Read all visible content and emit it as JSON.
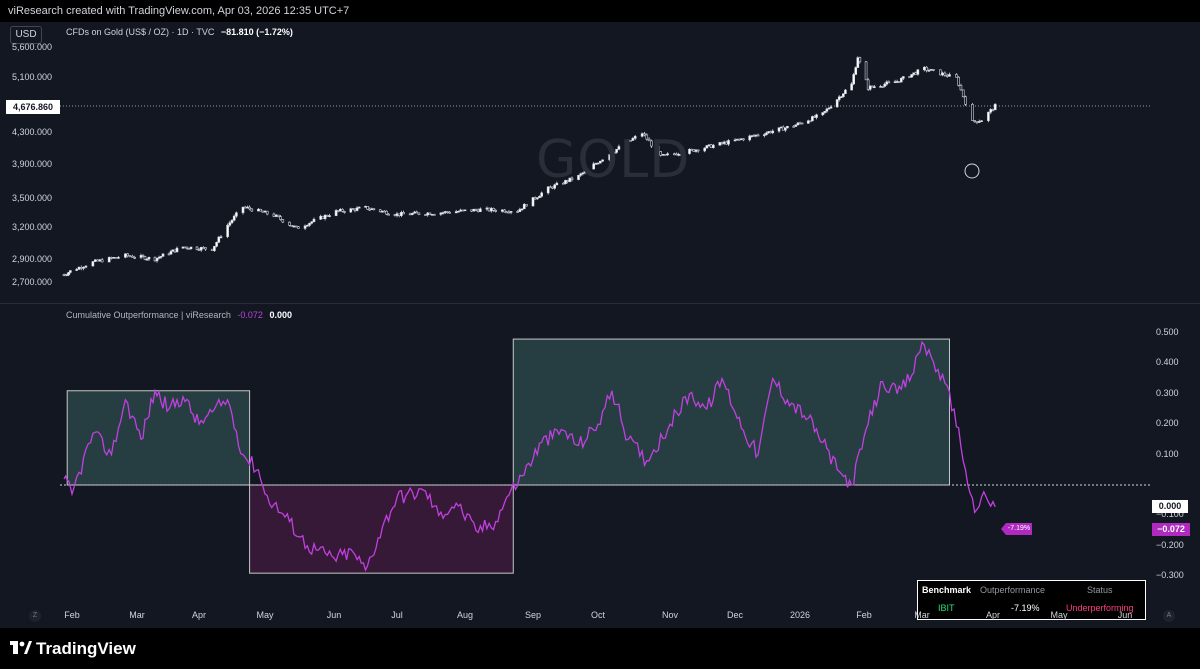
{
  "header": {
    "credit": "viResearch created with TradingView.com, Apr 03, 2026 12:35 UTC+7"
  },
  "top_pane": {
    "currency": "USD",
    "symbol_desc": "CFDs on Gold (US$ / OZ) · 1D · TVC",
    "change": "−81.810 (−1.72%)",
    "watermark": "GOLD",
    "current_price": "4,676.860",
    "y_ticks": [
      "5,600.000",
      "5,100.000",
      "4,300.000",
      "3,900.000",
      "3,500.000",
      "3,200.000",
      "2,900.000",
      "2,700.000"
    ]
  },
  "bottom_pane": {
    "title": "Cumulative Outperformance | viResearch",
    "value1": "-0.072",
    "value2": "0.000",
    "zero_label": "0.000",
    "last_value": "−0.072",
    "last_pct": "-7.19%",
    "y_ticks": [
      "0.500",
      "0.400",
      "0.300",
      "0.200",
      "0.100",
      "−0.100",
      "−0.200",
      "−0.300"
    ]
  },
  "table": {
    "headers": [
      "Benchmark",
      "Outperformance",
      "Status"
    ],
    "row": [
      "IBIT",
      "-7.19%",
      "Underperforming"
    ],
    "colors": {
      "benchmark": "#26e07a",
      "status": "#ff3d7f"
    }
  },
  "time_axis": {
    "labels": [
      "Feb",
      "Mar",
      "Apr",
      "May",
      "Jun",
      "Jul",
      "Aug",
      "Sep",
      "Oct",
      "Nov",
      "Dec",
      "2026",
      "Feb",
      "Mar",
      "Apr",
      "May",
      "Jun"
    ],
    "left_btn": "Z",
    "right_btn": "A"
  },
  "footer": {
    "brand": "TradingView"
  },
  "colors": {
    "background": "#131722",
    "up_candle": "#ffffff",
    "line": "#c040e0",
    "positive_zone": "#2a4548",
    "negative_zone": "#3d1a3a"
  },
  "chart_data": [
    {
      "type": "candlestick",
      "title": "CFDs on Gold (US$ / OZ) · 1D · TVC",
      "x_range": [
        "2025-01-27",
        "2026-04-02"
      ],
      "ylim": [
        2650,
        5700
      ],
      "anchors": [
        [
          "2025-01-27",
          2770
        ],
        [
          "2025-02-10",
          2880
        ],
        [
          "2025-02-24",
          2940
        ],
        [
          "2025-03-10",
          2910
        ],
        [
          "2025-03-24",
          3020
        ],
        [
          "2025-04-07",
          3000
        ],
        [
          "2025-04-14",
          3230
        ],
        [
          "2025-04-21",
          3420
        ],
        [
          "2025-05-05",
          3330
        ],
        [
          "2025-05-15",
          3200
        ],
        [
          "2025-06-02",
          3370
        ],
        [
          "2025-06-16",
          3410
        ],
        [
          "2025-07-01",
          3340
        ],
        [
          "2025-07-21",
          3360
        ],
        [
          "2025-08-08",
          3390
        ],
        [
          "2025-08-25",
          3380
        ],
        [
          "2025-09-08",
          3620
        ],
        [
          "2025-09-22",
          3760
        ],
        [
          "2025-10-07",
          4050
        ],
        [
          "2025-10-20",
          4300
        ],
        [
          "2025-10-28",
          4000
        ],
        [
          "2025-11-12",
          4080
        ],
        [
          "2025-12-01",
          4200
        ],
        [
          "2025-12-15",
          4300
        ],
        [
          "2025-12-29",
          4400
        ],
        [
          "2026-01-12",
          4560
        ],
        [
          "2026-01-26",
          5000
        ],
        [
          "2026-01-29",
          5450
        ],
        [
          "2026-02-03",
          4950
        ],
        [
          "2026-02-17",
          5050
        ],
        [
          "2026-03-02",
          5250
        ],
        [
          "2026-03-16",
          5100
        ],
        [
          "2026-03-23",
          4450
        ],
        [
          "2026-03-27",
          4480
        ],
        [
          "2026-04-02",
          4677
        ]
      ]
    },
    {
      "type": "line",
      "title": "Cumulative Outperformance | viResearch",
      "x_range": [
        "2025-01-27",
        "2026-04-02"
      ],
      "ylim": [
        -0.35,
        0.5
      ],
      "zones": [
        {
          "from": "2025-01-29",
          "to": "2025-04-24",
          "top": 0.31,
          "bottom": 0.0,
          "kind": "outperform"
        },
        {
          "from": "2025-04-24",
          "to": "2025-08-23",
          "top": 0.0,
          "bottom": -0.29,
          "kind": "underperform"
        },
        {
          "from": "2025-08-23",
          "to": "2026-03-13",
          "top": 0.48,
          "bottom": 0.0,
          "kind": "outperform"
        }
      ],
      "series": [
        {
          "values": [
            [
              "2025-01-27",
              0.02
            ],
            [
              "2025-02-01",
              -0.03
            ],
            [
              "2025-02-10",
              0.17
            ],
            [
              "2025-02-18",
              0.1
            ],
            [
              "2025-02-24",
              0.28
            ],
            [
              "2025-03-03",
              0.15
            ],
            [
              "2025-03-10",
              0.31
            ],
            [
              "2025-03-17",
              0.25
            ],
            [
              "2025-03-24",
              0.29
            ],
            [
              "2025-04-01",
              0.2
            ],
            [
              "2025-04-07",
              0.24
            ],
            [
              "2025-04-14",
              0.28
            ],
            [
              "2025-04-21",
              0.1
            ],
            [
              "2025-04-28",
              0.05
            ],
            [
              "2025-05-01",
              -0.03
            ],
            [
              "2025-05-12",
              -0.12
            ],
            [
              "2025-05-20",
              -0.2
            ],
            [
              "2025-06-01",
              -0.24
            ],
            [
              "2025-06-10",
              -0.22
            ],
            [
              "2025-06-16",
              -0.28
            ],
            [
              "2025-06-24",
              -0.14
            ],
            [
              "2025-07-01",
              -0.04
            ],
            [
              "2025-07-14",
              -0.02
            ],
            [
              "2025-07-20",
              -0.1
            ],
            [
              "2025-07-28",
              -0.06
            ],
            [
              "2025-08-06",
              -0.15
            ],
            [
              "2025-08-15",
              -0.12
            ],
            [
              "2025-08-20",
              -0.04
            ],
            [
              "2025-08-27",
              0.03
            ],
            [
              "2025-09-05",
              0.14
            ],
            [
              "2025-09-15",
              0.18
            ],
            [
              "2025-09-22",
              0.13
            ],
            [
              "2025-10-01",
              0.2
            ],
            [
              "2025-10-07",
              0.31
            ],
            [
              "2025-10-14",
              0.15
            ],
            [
              "2025-10-22",
              0.08
            ],
            [
              "2025-11-01",
              0.2
            ],
            [
              "2025-11-10",
              0.3
            ],
            [
              "2025-11-18",
              0.25
            ],
            [
              "2025-11-25",
              0.35
            ],
            [
              "2025-12-05",
              0.18
            ],
            [
              "2025-12-12",
              0.1
            ],
            [
              "2025-12-19",
              0.35
            ],
            [
              "2025-12-26",
              0.28
            ],
            [
              "2026-01-05",
              0.22
            ],
            [
              "2026-01-12",
              0.14
            ],
            [
              "2026-01-19",
              0.05
            ],
            [
              "2026-01-26",
              0.0
            ],
            [
              "2026-02-03",
              0.2
            ],
            [
              "2026-02-10",
              0.34
            ],
            [
              "2026-02-17",
              0.3
            ],
            [
              "2026-02-24",
              0.36
            ],
            [
              "2026-03-01",
              0.47
            ],
            [
              "2026-03-08",
              0.38
            ],
            [
              "2026-03-15",
              0.25
            ],
            [
              "2026-03-20",
              0.05
            ],
            [
              "2026-03-24",
              -0.09
            ],
            [
              "2026-03-27",
              -0.04
            ],
            [
              "2026-04-02",
              -0.072
            ]
          ]
        }
      ]
    }
  ]
}
